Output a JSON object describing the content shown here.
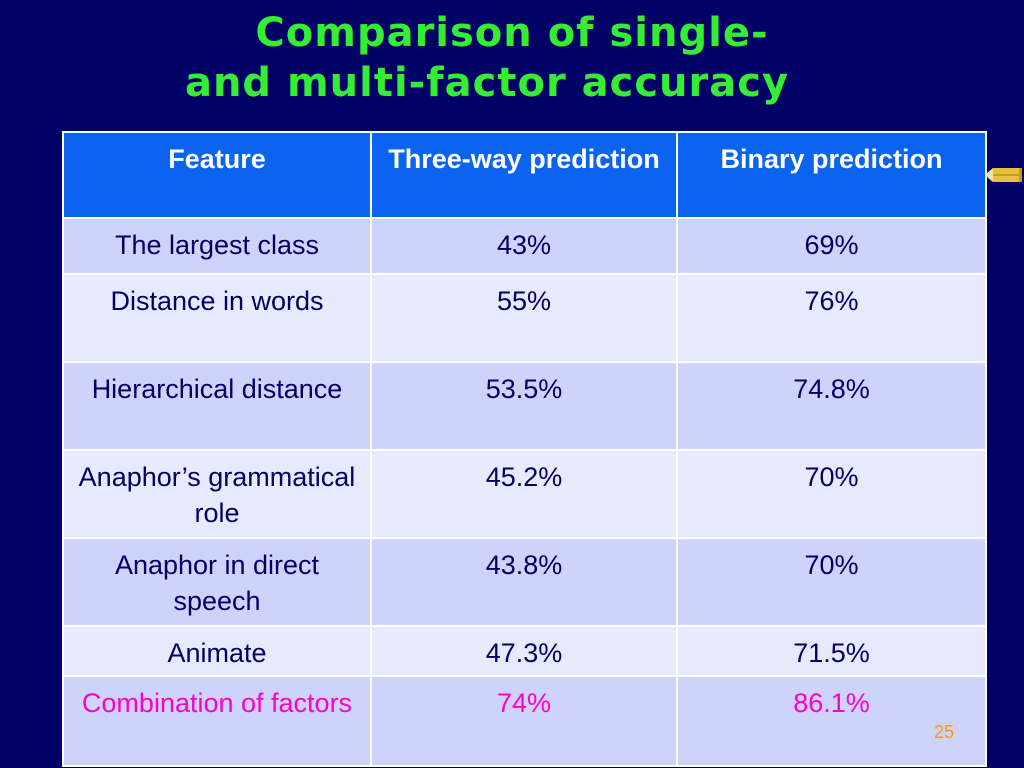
{
  "slide": {
    "title_line1": "Comparison of single-",
    "title_line2": "and multi-factor accuracy",
    "page_number": "25"
  },
  "table": {
    "headers": {
      "feature": "Feature",
      "three_way": "Three-way prediction",
      "binary": "Binary prediction"
    },
    "rows": [
      {
        "feature": "The largest class",
        "three_way": "43%",
        "binary": "69%"
      },
      {
        "feature": "Distance in words",
        "three_way": "55%",
        "binary": "76%"
      },
      {
        "feature": "Hierarchical distance",
        "three_way": "53.5%",
        "binary": "74.8%"
      },
      {
        "feature": "Anaphor’s grammatical role",
        "three_way": "45.2%",
        "binary": "70%"
      },
      {
        "feature": "Anaphor in direct speech",
        "three_way": "43.8%",
        "binary": "70%"
      },
      {
        "feature": "Animate",
        "three_way": "47.3%",
        "binary": "71.5%"
      },
      {
        "feature": "Combination of factors",
        "three_way": "74%",
        "binary": "86.1%"
      }
    ]
  },
  "colors": {
    "background": "#000066",
    "title": "#33ee33",
    "header_bg": "#0b63f0",
    "row_odd": "#cdd3fb",
    "row_even": "#e7eafc",
    "highlight_text": "#ff00cc",
    "page_number": "#ff9900"
  },
  "icons": {
    "decoration": "pencil-icon"
  }
}
